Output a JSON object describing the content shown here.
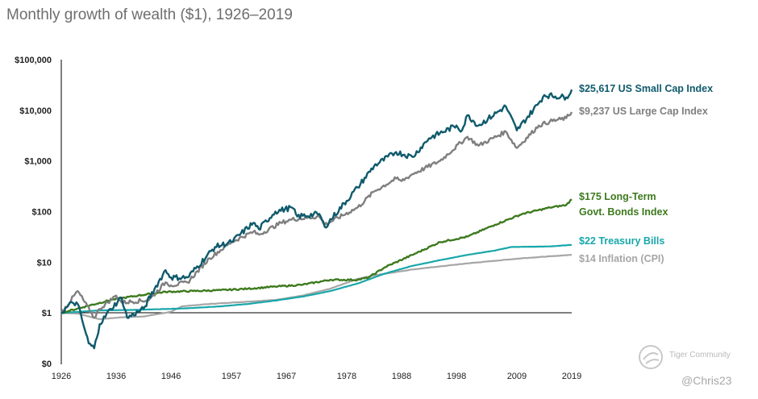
{
  "title": "Monthly growth of wealth ($1), 1926–2019",
  "chart_data": {
    "type": "line",
    "title": "Monthly growth of wealth ($1), 1926–2019",
    "xlabel": "",
    "ylabel": "",
    "yscale": "log",
    "xlim": [
      1926,
      2019
    ],
    "ylim": [
      0.1,
      100000
    ],
    "y_tick_values": [
      0.1,
      1,
      10,
      100,
      1000,
      10000,
      100000
    ],
    "y_tick_labels": [
      "$0",
      "$1",
      "$10",
      "$100",
      "$1,000",
      "$10,000",
      "$100,000"
    ],
    "x_tick_values": [
      1926,
      1936,
      1946,
      1957,
      1967,
      1978,
      1988,
      1998,
      2009,
      2019
    ],
    "x_tick_labels": [
      "1926",
      "1936",
      "1946",
      "1957",
      "1967",
      "1978",
      "1988",
      "1998",
      "2009",
      "2019"
    ],
    "baseline": 1,
    "series": [
      {
        "name": "US Small Cap Index",
        "label_lines": [
          "$25,617 US Small Cap Index"
        ],
        "ending_value": 25617,
        "color": "#0f5a6c",
        "x": [
          1926,
          1928,
          1929,
          1930,
          1931,
          1932,
          1933,
          1935,
          1937,
          1938,
          1941,
          1943,
          1945,
          1946,
          1949,
          1954,
          1957,
          1961,
          1962,
          1965,
          1968,
          1969,
          1973,
          1974,
          1980,
          1983,
          1987,
          1990,
          1993,
          1998,
          1999,
          2000,
          2002,
          2007,
          2009,
          2013,
          2014,
          2018,
          2019
        ],
        "y": [
          1,
          1.6,
          1.5,
          0.6,
          0.25,
          0.2,
          0.6,
          1.2,
          2.0,
          0.8,
          1.2,
          3.0,
          7.0,
          5.0,
          5.0,
          20,
          25,
          60,
          45,
          100,
          120,
          80,
          90,
          50,
          300,
          800,
          1500,
          1200,
          2800,
          5000,
          4000,
          8000,
          5000,
          12000,
          4000,
          14000,
          20000,
          18000,
          25617
        ]
      },
      {
        "name": "US Large Cap Index",
        "label_lines": [
          "$9,237 US Large Cap Index"
        ],
        "ending_value": 9237,
        "color": "#7f7f7f",
        "x": [
          1926,
          1929,
          1932,
          1933,
          1936,
          1937,
          1942,
          1945,
          1946,
          1949,
          1953,
          1957,
          1961,
          1962,
          1966,
          1968,
          1973,
          1974,
          1980,
          1983,
          1987,
          1988,
          1990,
          1995,
          2000,
          2002,
          2007,
          2009,
          2013,
          2015,
          2018,
          2019
        ],
        "y": [
          1,
          2.7,
          0.8,
          1.2,
          2.2,
          1.6,
          1.8,
          4.0,
          3.5,
          4.0,
          12,
          25,
          40,
          35,
          60,
          70,
          80,
          55,
          120,
          250,
          450,
          400,
          550,
          1000,
          3000,
          2000,
          3800,
          1800,
          5000,
          6000,
          7000,
          9237
        ]
      },
      {
        "name": "Long-Term Govt. Bonds Index",
        "label_lines": [
          "$175 Long-Term",
          "Govt. Bonds Index"
        ],
        "ending_value": 175,
        "color": "#3d7a1e",
        "x": [
          1926,
          1930,
          1935,
          1940,
          1945,
          1950,
          1955,
          1960,
          1965,
          1970,
          1975,
          1980,
          1982,
          1985,
          1990,
          1995,
          2000,
          2005,
          2010,
          2015,
          2018,
          2019
        ],
        "y": [
          1,
          1.3,
          1.8,
          2.2,
          2.6,
          2.7,
          2.8,
          3.0,
          3.3,
          3.6,
          4.5,
          4.5,
          5.0,
          8.0,
          14,
          25,
          32,
          55,
          90,
          120,
          135,
          175
        ]
      },
      {
        "name": "Treasury Bills",
        "label_lines": [
          "$22 Treasury Bills"
        ],
        "ending_value": 22,
        "color": "#18a7aa",
        "x": [
          1926,
          1933,
          1940,
          1946,
          1950,
          1955,
          1960,
          1965,
          1970,
          1975,
          1980,
          1985,
          1990,
          1995,
          2000,
          2005,
          2008,
          2015,
          2019
        ],
        "y": [
          1,
          1.12,
          1.15,
          1.2,
          1.25,
          1.35,
          1.5,
          1.75,
          2.1,
          2.7,
          3.8,
          6.0,
          8.5,
          11,
          14,
          17,
          20,
          20.5,
          22
        ]
      },
      {
        "name": "Inflation (CPI)",
        "label_lines": [
          "$14 Inflation (CPI)"
        ],
        "ending_value": 14,
        "color": "#a6a6a6",
        "x": [
          1926,
          1929,
          1933,
          1937,
          1941,
          1946,
          1948,
          1953,
          1965,
          1970,
          1975,
          1980,
          1983,
          1990,
          2000,
          2010,
          2019
        ],
        "y": [
          1,
          0.97,
          0.75,
          0.82,
          0.85,
          1.05,
          1.35,
          1.5,
          1.8,
          2.2,
          3.0,
          4.7,
          5.5,
          7.2,
          9.5,
          12,
          14
        ]
      }
    ]
  },
  "watermark": {
    "brand": "Tiger Community",
    "user": "@Chris23"
  }
}
